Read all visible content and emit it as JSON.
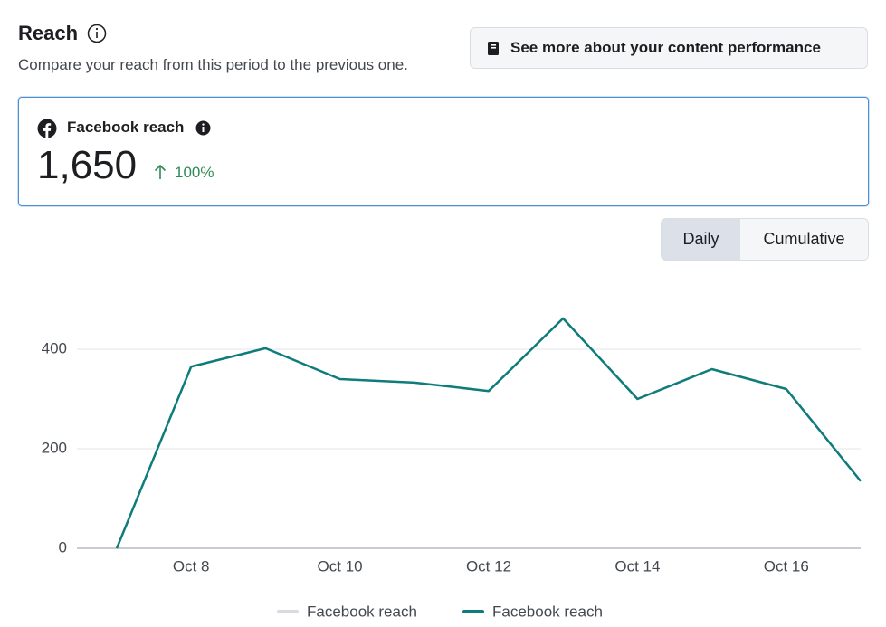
{
  "header": {
    "title": "Reach",
    "subtitle": "Compare your reach from this period to the previous one.",
    "button": "See more about your content performance"
  },
  "card": {
    "label": "Facebook reach",
    "value": "1,650",
    "change": "100%"
  },
  "toggle": {
    "options": [
      "Daily",
      "Cumulative"
    ]
  },
  "chart_data": {
    "type": "line",
    "categories": [
      null,
      "Oct 8",
      null,
      "Oct 10",
      null,
      "Oct 12",
      null,
      "Oct 14",
      null,
      "Oct 16",
      null
    ],
    "series": [
      {
        "name": "Facebook reach",
        "color": "#d8dadf",
        "values": [
          null,
          null,
          null,
          null,
          null,
          null,
          null,
          null,
          null,
          null,
          null
        ]
      },
      {
        "name": "Facebook reach",
        "color": "#0e7c7b",
        "values": [
          0,
          365,
          402,
          340,
          333,
          316,
          462,
          300,
          360,
          320,
          135
        ]
      }
    ],
    "ylim": [
      0,
      500
    ],
    "yticks": [
      0,
      200,
      400
    ],
    "grid": true
  }
}
